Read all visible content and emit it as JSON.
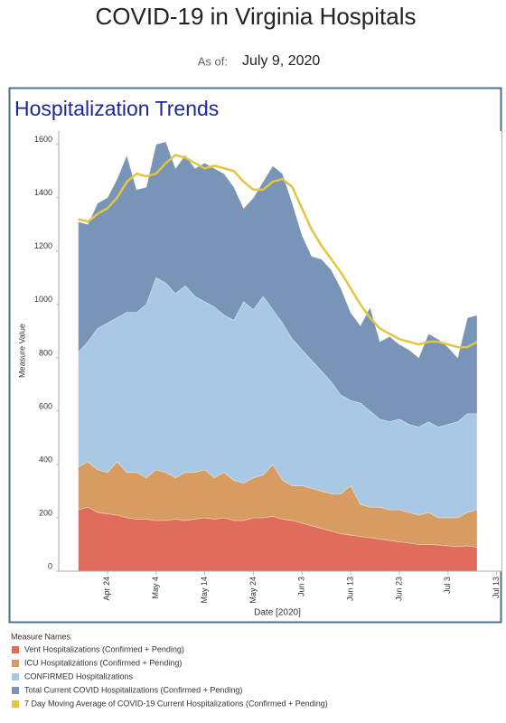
{
  "header": {
    "title": "COVID-19 in Virginia Hospitals",
    "as_of_label": "As of:",
    "as_of_date": "July 9, 2020"
  },
  "chart_data": {
    "type": "area",
    "title": "Hospitalization Trends",
    "x_label": "Date [2020]",
    "y_label": "Measure Value",
    "legend_title": "Measure Names",
    "x": [
      "2020-04-18",
      "2020-04-20",
      "2020-04-22",
      "2020-04-24",
      "2020-04-26",
      "2020-04-28",
      "2020-04-30",
      "2020-05-02",
      "2020-05-04",
      "2020-05-06",
      "2020-05-08",
      "2020-05-10",
      "2020-05-12",
      "2020-05-14",
      "2020-05-16",
      "2020-05-18",
      "2020-05-20",
      "2020-05-22",
      "2020-05-24",
      "2020-05-26",
      "2020-05-28",
      "2020-05-30",
      "2020-06-01",
      "2020-06-03",
      "2020-06-05",
      "2020-06-07",
      "2020-06-09",
      "2020-06-11",
      "2020-06-13",
      "2020-06-15",
      "2020-06-17",
      "2020-06-19",
      "2020-06-21",
      "2020-06-23",
      "2020-06-25",
      "2020-06-27",
      "2020-06-29",
      "2020-07-01",
      "2020-07-03",
      "2020-07-05",
      "2020-07-07",
      "2020-07-09"
    ],
    "series": [
      {
        "name": "Vent Hospitalizations (Confirmed + Pending)",
        "type": "area",
        "color": "#e06c5c",
        "values": [
          230,
          240,
          220,
          215,
          210,
          200,
          195,
          195,
          190,
          190,
          195,
          190,
          195,
          200,
          195,
          200,
          190,
          190,
          200,
          200,
          205,
          195,
          190,
          180,
          170,
          160,
          150,
          140,
          135,
          130,
          125,
          120,
          115,
          110,
          105,
          100,
          100,
          98,
          95,
          92,
          95,
          90
        ]
      },
      {
        "name": "ICU Hospitalizations (Confirmed + Pending)",
        "type": "area",
        "color": "#d79c62",
        "values": [
          390,
          410,
          380,
          370,
          410,
          370,
          370,
          350,
          380,
          370,
          350,
          370,
          370,
          380,
          350,
          370,
          340,
          330,
          350,
          360,
          400,
          340,
          320,
          320,
          310,
          300,
          290,
          290,
          320,
          250,
          240,
          240,
          230,
          230,
          220,
          210,
          220,
          200,
          200,
          200,
          220,
          230
        ]
      },
      {
        "name": "CONFIRMED Hospitalizations",
        "type": "area",
        "color": "#a8c8e4",
        "values": [
          820,
          860,
          910,
          930,
          950,
          970,
          970,
          1000,
          1100,
          1080,
          1040,
          1070,
          1030,
          1010,
          990,
          960,
          940,
          1010,
          980,
          1030,
          980,
          930,
          870,
          830,
          790,
          750,
          710,
          660,
          640,
          630,
          600,
          570,
          560,
          570,
          550,
          540,
          560,
          540,
          550,
          560,
          590,
          590
        ]
      },
      {
        "name": "Total Current COVID Hospitalizations (Confirmed + Pending)",
        "type": "area",
        "color": "#7894b7",
        "values": [
          1310,
          1300,
          1380,
          1400,
          1470,
          1560,
          1430,
          1440,
          1600,
          1610,
          1510,
          1560,
          1510,
          1530,
          1510,
          1490,
          1440,
          1360,
          1400,
          1460,
          1520,
          1490,
          1380,
          1260,
          1180,
          1170,
          1130,
          1060,
          970,
          920,
          990,
          860,
          880,
          850,
          830,
          800,
          890,
          870,
          840,
          800,
          950,
          960
        ]
      },
      {
        "name": "7 Day Moving Average of COVID-19 Current Hospitalizations (Confirmed + Pending)",
        "type": "line",
        "color": "#e5c43f",
        "values": [
          1320,
          1310,
          1340,
          1360,
          1400,
          1460,
          1490,
          1480,
          1490,
          1530,
          1560,
          1550,
          1530,
          1510,
          1520,
          1510,
          1500,
          1460,
          1430,
          1430,
          1460,
          1470,
          1440,
          1360,
          1280,
          1220,
          1170,
          1120,
          1060,
          1000,
          950,
          910,
          890,
          870,
          860,
          850,
          860,
          860,
          850,
          840,
          840,
          860
        ]
      }
    ],
    "xlim": [
      "2020-04-14",
      "2020-07-14"
    ],
    "xticks": [
      {
        "value": "2020-04-24",
        "label": "Apr 24"
      },
      {
        "value": "2020-05-04",
        "label": "May 4"
      },
      {
        "value": "2020-05-14",
        "label": "May 14"
      },
      {
        "value": "2020-05-24",
        "label": "May 24"
      },
      {
        "value": "2020-06-03",
        "label": "Jun 3"
      },
      {
        "value": "2020-06-13",
        "label": "Jun 13"
      },
      {
        "value": "2020-06-23",
        "label": "Jun 23"
      },
      {
        "value": "2020-07-03",
        "label": "Jul 3"
      },
      {
        "value": "2020-07-13",
        "label": "Jul 13"
      }
    ],
    "ylim": [
      0,
      1650
    ],
    "yticks": [
      0,
      200,
      400,
      600,
      800,
      1000,
      1200,
      1400,
      1600
    ],
    "grid": false
  }
}
